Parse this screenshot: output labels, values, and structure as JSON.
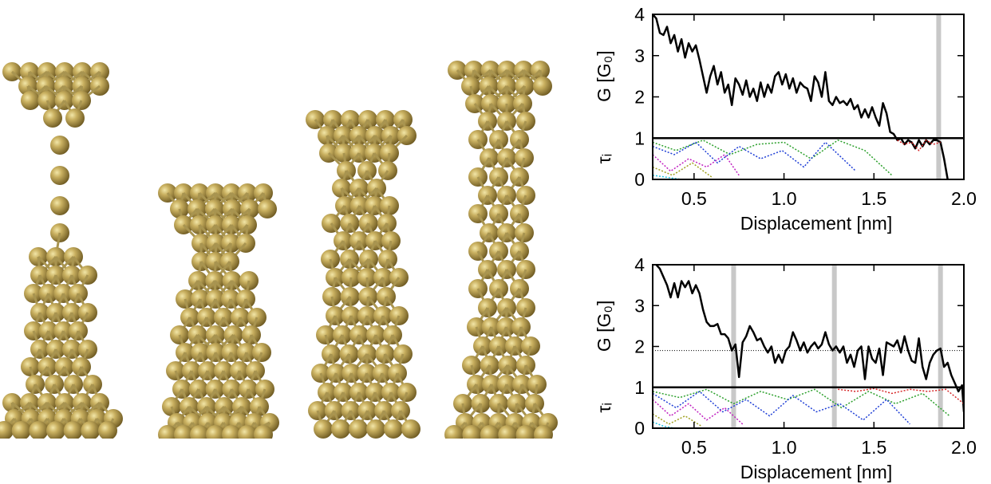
{
  "chart_data": [
    {
      "type": "line",
      "xlabel": "Displacement [nm]",
      "ylabel": "G [G₀]",
      "ylabel2": "τᵢ",
      "xlim": [
        0.27,
        2.0
      ],
      "ylim": [
        0,
        4
      ],
      "xticks": [
        {
          "value": 0.5,
          "label": "0.5"
        },
        {
          "value": 1.0,
          "label": "1.0"
        },
        {
          "value": 1.5,
          "label": "1.5"
        },
        {
          "value": 2.0,
          "label": "2.0"
        }
      ],
      "yticks": [
        0,
        1,
        2,
        3,
        4
      ],
      "separator_line": 1,
      "highlights": [
        1.86
      ],
      "series": [
        {
          "color": "#000000",
          "style": "solid",
          "x": [
            0.27,
            0.29,
            0.31,
            0.33,
            0.35,
            0.37,
            0.39,
            0.41,
            0.43,
            0.45,
            0.47,
            0.49,
            0.51,
            0.53,
            0.55,
            0.57,
            0.59,
            0.61,
            0.63,
            0.65,
            0.67,
            0.69,
            0.71,
            0.73,
            0.75,
            0.77,
            0.79,
            0.81,
            0.83,
            0.85,
            0.87,
            0.89,
            0.91,
            0.93,
            0.95,
            0.97,
            0.99,
            1.01,
            1.03,
            1.05,
            1.07,
            1.09,
            1.11,
            1.13,
            1.15,
            1.17,
            1.19,
            1.21,
            1.23,
            1.25,
            1.27,
            1.29,
            1.31,
            1.33,
            1.35,
            1.37,
            1.39,
            1.41,
            1.43,
            1.45,
            1.47,
            1.49,
            1.51,
            1.53,
            1.55,
            1.57,
            1.59,
            1.61,
            1.63,
            1.65,
            1.67,
            1.69,
            1.71,
            1.73,
            1.75,
            1.77,
            1.79,
            1.81,
            1.83,
            1.85,
            1.87,
            1.89,
            1.91
          ],
          "values": [
            4.0,
            3.9,
            3.55,
            3.5,
            3.7,
            3.3,
            3.5,
            3.1,
            3.4,
            2.95,
            3.3,
            3.1,
            3.25,
            2.9,
            2.5,
            2.1,
            2.5,
            2.75,
            2.3,
            2.6,
            2.1,
            2.3,
            1.8,
            2.45,
            2.3,
            2.05,
            2.4,
            2.0,
            2.2,
            1.9,
            2.35,
            2.0,
            2.3,
            2.1,
            2.5,
            2.6,
            2.3,
            2.55,
            2.2,
            2.45,
            2.1,
            2.35,
            2.25,
            2.2,
            1.9,
            2.5,
            2.35,
            2.0,
            2.6,
            1.9,
            1.8,
            2.0,
            1.85,
            1.9,
            1.8,
            1.95,
            1.7,
            1.8,
            1.5,
            1.7,
            1.5,
            1.75,
            1.5,
            1.3,
            1.85,
            1.6,
            1.15,
            1.1,
            0.95,
            1.0,
            0.85,
            0.95,
            0.9,
            0.75,
            0.95,
            0.8,
            0.95,
            0.85,
            0.95,
            0.95,
            0.9,
            0.5,
            0.0
          ]
        },
        {
          "color": "#d62728",
          "style": "dotted",
          "x": [
            1.63,
            1.67,
            1.71,
            1.75,
            1.79,
            1.83,
            1.87
          ],
          "values": [
            0.95,
            0.85,
            0.9,
            0.7,
            0.95,
            0.85,
            0.9
          ]
        },
        {
          "color": "#2ca02c",
          "style": "dotted",
          "x": [
            0.27,
            0.4,
            0.55,
            0.7,
            0.85,
            1.0,
            1.15,
            1.3,
            1.45,
            1.6
          ],
          "values": [
            0.9,
            0.7,
            0.95,
            0.6,
            0.85,
            0.9,
            0.5,
            0.95,
            0.7,
            0.1
          ]
        },
        {
          "color": "#1f3fd6",
          "style": "dotted",
          "x": [
            0.27,
            0.39,
            0.51,
            0.63,
            0.75,
            0.87,
            0.99,
            1.11,
            1.23,
            1.4
          ],
          "values": [
            0.8,
            0.6,
            0.9,
            0.4,
            0.8,
            0.5,
            0.7,
            0.3,
            0.9,
            0.2
          ]
        },
        {
          "color": "#c020c0",
          "style": "dotted",
          "x": [
            0.27,
            0.37,
            0.47,
            0.57,
            0.67,
            0.75
          ],
          "values": [
            0.6,
            0.2,
            0.5,
            0.3,
            0.6,
            0.1
          ]
        },
        {
          "color": "#a0a020",
          "style": "dotted",
          "x": [
            0.27,
            0.38,
            0.49,
            0.6
          ],
          "values": [
            0.3,
            0.1,
            0.4,
            0.05
          ]
        },
        {
          "color": "#20c0e0",
          "style": "dotted",
          "x": [
            0.27,
            0.35,
            0.43
          ],
          "values": [
            0.1,
            0.05,
            0
          ]
        }
      ]
    },
    {
      "type": "line",
      "xlabel": "Displacement [nm]",
      "ylabel": "G [G₀]",
      "ylabel2": "τᵢ",
      "xlim": [
        0.27,
        2.0
      ],
      "ylim": [
        0,
        4
      ],
      "xticks": [
        {
          "value": 0.5,
          "label": "0.5"
        },
        {
          "value": 1.0,
          "label": "1.0"
        },
        {
          "value": 1.5,
          "label": "1.5"
        },
        {
          "value": 2.0,
          "label": "2.0"
        }
      ],
      "yticks": [
        0,
        1,
        2,
        3,
        4
      ],
      "separator_line": 1,
      "highlights": [
        0.72,
        1.28,
        1.87
      ],
      "reference_line": 1.9,
      "series": [
        {
          "color": "#000000",
          "style": "solid",
          "x": [
            0.29,
            0.31,
            0.33,
            0.35,
            0.37,
            0.39,
            0.41,
            0.43,
            0.45,
            0.47,
            0.49,
            0.51,
            0.53,
            0.55,
            0.57,
            0.59,
            0.61,
            0.63,
            0.65,
            0.67,
            0.69,
            0.71,
            0.73,
            0.75,
            0.77,
            0.79,
            0.81,
            0.83,
            0.85,
            0.87,
            0.89,
            0.91,
            0.93,
            0.95,
            0.97,
            0.99,
            1.01,
            1.03,
            1.05,
            1.07,
            1.09,
            1.11,
            1.13,
            1.15,
            1.17,
            1.19,
            1.21,
            1.23,
            1.25,
            1.27,
            1.29,
            1.31,
            1.33,
            1.35,
            1.37,
            1.39,
            1.41,
            1.43,
            1.45,
            1.47,
            1.49,
            1.51,
            1.53,
            1.55,
            1.57,
            1.59,
            1.61,
            1.63,
            1.65,
            1.67,
            1.69,
            1.71,
            1.73,
            1.75,
            1.77,
            1.79,
            1.81,
            1.83,
            1.85,
            1.87,
            1.89,
            1.91,
            1.93,
            1.95,
            1.97,
            1.99,
            2.0
          ],
          "values": [
            4.0,
            3.9,
            3.7,
            3.5,
            3.2,
            3.55,
            3.2,
            3.6,
            3.45,
            3.6,
            3.3,
            3.5,
            3.3,
            2.9,
            2.6,
            2.5,
            2.5,
            2.55,
            2.3,
            2.3,
            2.2,
            1.9,
            2.05,
            1.25,
            2.1,
            2.25,
            2.5,
            2.35,
            2.15,
            2.2,
            2.0,
            1.85,
            2.0,
            1.6,
            1.8,
            1.6,
            1.9,
            2.0,
            2.35,
            2.15,
            1.9,
            2.1,
            1.85,
            2.0,
            2.1,
            1.95,
            2.05,
            2.35,
            2.05,
            1.9,
            2.0,
            1.85,
            2.0,
            1.6,
            1.8,
            1.5,
            1.9,
            2.0,
            1.2,
            2.0,
            1.7,
            1.6,
            1.95,
            1.3,
            2.1,
            2.05,
            2.0,
            2.15,
            1.85,
            2.25,
            1.9,
            1.65,
            1.6,
            2.2,
            1.5,
            1.2,
            1.6,
            1.8,
            1.9,
            1.95,
            1.5,
            1.6,
            1.3,
            1.1,
            0.9,
            1.05,
            0.4
          ]
        },
        {
          "color": "#d62728",
          "style": "dotted",
          "x": [
            1.3,
            1.4,
            1.5,
            1.6,
            1.7,
            1.8,
            1.9,
            2.0
          ],
          "values": [
            0.95,
            0.9,
            0.97,
            0.85,
            0.95,
            0.9,
            0.95,
            0.6
          ]
        },
        {
          "color": "#2ca02c",
          "style": "dotted",
          "x": [
            0.27,
            0.42,
            0.57,
            0.72,
            0.87,
            1.02,
            1.17,
            1.32,
            1.47,
            1.62,
            1.77,
            1.92
          ],
          "values": [
            0.9,
            0.75,
            0.95,
            0.6,
            0.9,
            0.7,
            0.95,
            0.5,
            0.9,
            0.6,
            0.85,
            0.3
          ]
        },
        {
          "color": "#1f3fd6",
          "style": "dotted",
          "x": [
            0.27,
            0.4,
            0.53,
            0.66,
            0.79,
            0.92,
            1.05,
            1.18,
            1.31,
            1.44,
            1.57,
            1.7
          ],
          "values": [
            0.85,
            0.5,
            0.9,
            0.4,
            0.7,
            0.3,
            0.8,
            0.4,
            0.6,
            0.2,
            0.7,
            0.1
          ]
        },
        {
          "color": "#c020c0",
          "style": "dotted",
          "x": [
            0.27,
            0.37,
            0.47,
            0.57,
            0.67,
            0.77
          ],
          "values": [
            0.7,
            0.3,
            0.6,
            0.2,
            0.5,
            0.1
          ]
        },
        {
          "color": "#a0a020",
          "style": "dotted",
          "x": [
            0.27,
            0.36,
            0.45,
            0.54
          ],
          "values": [
            0.35,
            0.1,
            0.3,
            0.05
          ]
        },
        {
          "color": "#20c0e0",
          "style": "dotted",
          "x": [
            0.27,
            0.33,
            0.39
          ],
          "values": [
            0.15,
            0.05,
            0
          ]
        }
      ]
    }
  ]
}
